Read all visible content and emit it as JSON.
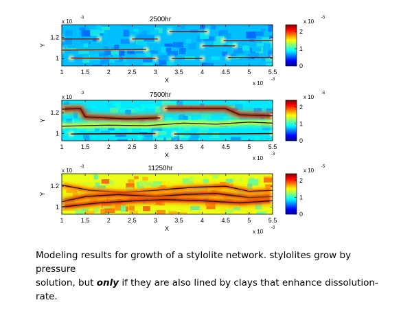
{
  "caption": {
    "line1": "Modeling results for growth of a stylolite network. stylolites grow by pressure",
    "line2_pre": "solution, but ",
    "line2_emph": "only",
    "line2_post": " if they are also lined by clays that enhance dissolution-rate."
  },
  "chart_data": [
    {
      "type": "heatmap",
      "title": "2500hr",
      "xlabel": "X",
      "ylabel": "Y",
      "x_exponent": "x 10",
      "x_exponent_power": "-3",
      "y_exponent": "x 10",
      "y_exponent_power": "-3",
      "xlim": [
        1,
        5.5
      ],
      "ylim": [
        0.93,
        1.32
      ],
      "xticks": [
        "1",
        "1.5",
        "2",
        "2.5",
        "3",
        "3.5",
        "4",
        "4.5",
        "5",
        "5.5"
      ],
      "yticks": [
        "1",
        "1.2"
      ],
      "colorbar": {
        "ticks": [
          "0",
          "1",
          "2"
        ],
        "exponent": "x 10",
        "exponent_power": "-5",
        "range": [
          0,
          2.4
        ]
      },
      "background_level": 0.75,
      "stylolites": [
        {
          "level": 0.95,
          "points": [
            [
              1,
              1.185
            ],
            [
              1.8,
              1.185
            ]
          ]
        },
        {
          "level": 0.95,
          "points": [
            [
              2.5,
              1.185
            ],
            [
              3.05,
              1.185
            ]
          ]
        },
        {
          "level": 2.3,
          "points": [
            [
              3.3,
              1.255
            ],
            [
              4.1,
              1.255
            ]
          ]
        },
        {
          "level": 1.1,
          "points": [
            [
              4.45,
              1.17
            ],
            [
              5.5,
              1.17
            ]
          ]
        },
        {
          "level": 1.6,
          "points": [
            [
              1,
              1.08
            ],
            [
              2.8,
              1.085
            ]
          ]
        },
        {
          "level": 1.0,
          "points": [
            [
              4.0,
              1.12
            ],
            [
              4.7,
              1.12
            ]
          ]
        },
        {
          "level": 2.0,
          "points": [
            [
              1.2,
              1.005
            ],
            [
              3.0,
              1.0
            ]
          ]
        },
        {
          "level": 1.1,
          "points": [
            [
              3.35,
              1.0
            ],
            [
              4.0,
              1.0
            ]
          ]
        },
        {
          "level": 2.2,
          "points": [
            [
              4.55,
              1.01
            ],
            [
              5.5,
              1.01
            ]
          ]
        }
      ]
    },
    {
      "type": "heatmap",
      "title": "7500hr",
      "xlabel": "X",
      "ylabel": "Y",
      "x_exponent": "x 10",
      "x_exponent_power": "-3",
      "y_exponent": "x 10",
      "y_exponent_power": "-3",
      "xlim": [
        1,
        5.5
      ],
      "ylim": [
        0.93,
        1.32
      ],
      "xticks": [
        "1",
        "1.5",
        "2",
        "2.5",
        "3",
        "3.5",
        "4",
        "4.5",
        "5",
        "5.5"
      ],
      "yticks": [
        "1",
        "1.2"
      ],
      "colorbar": {
        "ticks": [
          "0",
          "1",
          "2"
        ],
        "exponent": "x 10",
        "exponent_power": "-5",
        "range": [
          0,
          2.4
        ]
      },
      "background_level": 0.85,
      "stylolites": [
        {
          "level": 2.3,
          "points": [
            [
              1,
              1.235
            ],
            [
              1.4,
              1.24
            ],
            [
              1.5,
              1.16
            ],
            [
              2.4,
              1.14
            ],
            [
              3.1,
              1.15
            ]
          ]
        },
        {
          "level": 2.3,
          "points": [
            [
              3.2,
              1.24
            ],
            [
              4.5,
              1.24
            ],
            [
              4.8,
              1.18
            ],
            [
              5.5,
              1.17
            ]
          ]
        },
        {
          "level": 1.5,
          "points": [
            [
              1,
              1.07
            ],
            [
              2.0,
              1.08
            ],
            [
              2.8,
              1.075
            ],
            [
              3.6,
              1.1
            ],
            [
              4.3,
              1.09
            ],
            [
              5.0,
              1.11
            ],
            [
              5.5,
              1.1
            ]
          ]
        },
        {
          "level": 2.2,
          "points": [
            [
              1.2,
              0.995
            ],
            [
              2.4,
              1.0
            ],
            [
              3.0,
              1.0
            ]
          ]
        },
        {
          "level": 2.0,
          "points": [
            [
              3.4,
              0.995
            ],
            [
              4.4,
              0.995
            ],
            [
              5.5,
              1.0
            ]
          ]
        }
      ]
    },
    {
      "type": "heatmap",
      "title": "11250hr",
      "xlabel": "X",
      "ylabel": "Y",
      "x_exponent": "x 10",
      "x_exponent_power": "-3",
      "y_exponent": "x 10",
      "y_exponent_power": "-3",
      "xlim": [
        1,
        5.5
      ],
      "ylim": [
        0.93,
        1.32
      ],
      "xticks": [
        "1",
        "1.5",
        "2",
        "2.5",
        "3",
        "3.5",
        "4",
        "4.5",
        "5",
        "5.5"
      ],
      "yticks": [
        "1",
        "1.2"
      ],
      "colorbar": {
        "ticks": [
          "0",
          "1",
          "2"
        ],
        "exponent": "x 10",
        "exponent_power": "-5",
        "range": [
          0,
          2.4
        ]
      },
      "background_level": 1.45,
      "stylolites": [
        {
          "level": 2.0,
          "points": [
            [
              1,
              1.21
            ],
            [
              1.6,
              1.16
            ],
            [
              2.3,
              1.14
            ],
            [
              3.0,
              1.16
            ],
            [
              3.8,
              1.19
            ],
            [
              4.5,
              1.2
            ],
            [
              5.0,
              1.15
            ],
            [
              5.5,
              1.16
            ]
          ]
        },
        {
          "level": 2.2,
          "points": [
            [
              1,
              1.05
            ],
            [
              1.5,
              1.1
            ],
            [
              2.2,
              1.12
            ],
            [
              3.0,
              1.1
            ],
            [
              3.6,
              1.12
            ],
            [
              4.3,
              1.13
            ],
            [
              5.0,
              1.09
            ],
            [
              5.5,
              1.1
            ]
          ]
        },
        {
          "level": 2.2,
          "points": [
            [
              1,
              1.0
            ],
            [
              1.8,
              1.04
            ],
            [
              2.6,
              1.06
            ],
            [
              3.2,
              1.07
            ],
            [
              4.0,
              1.06
            ],
            [
              4.8,
              1.04
            ],
            [
              5.5,
              1.06
            ]
          ]
        }
      ]
    }
  ]
}
